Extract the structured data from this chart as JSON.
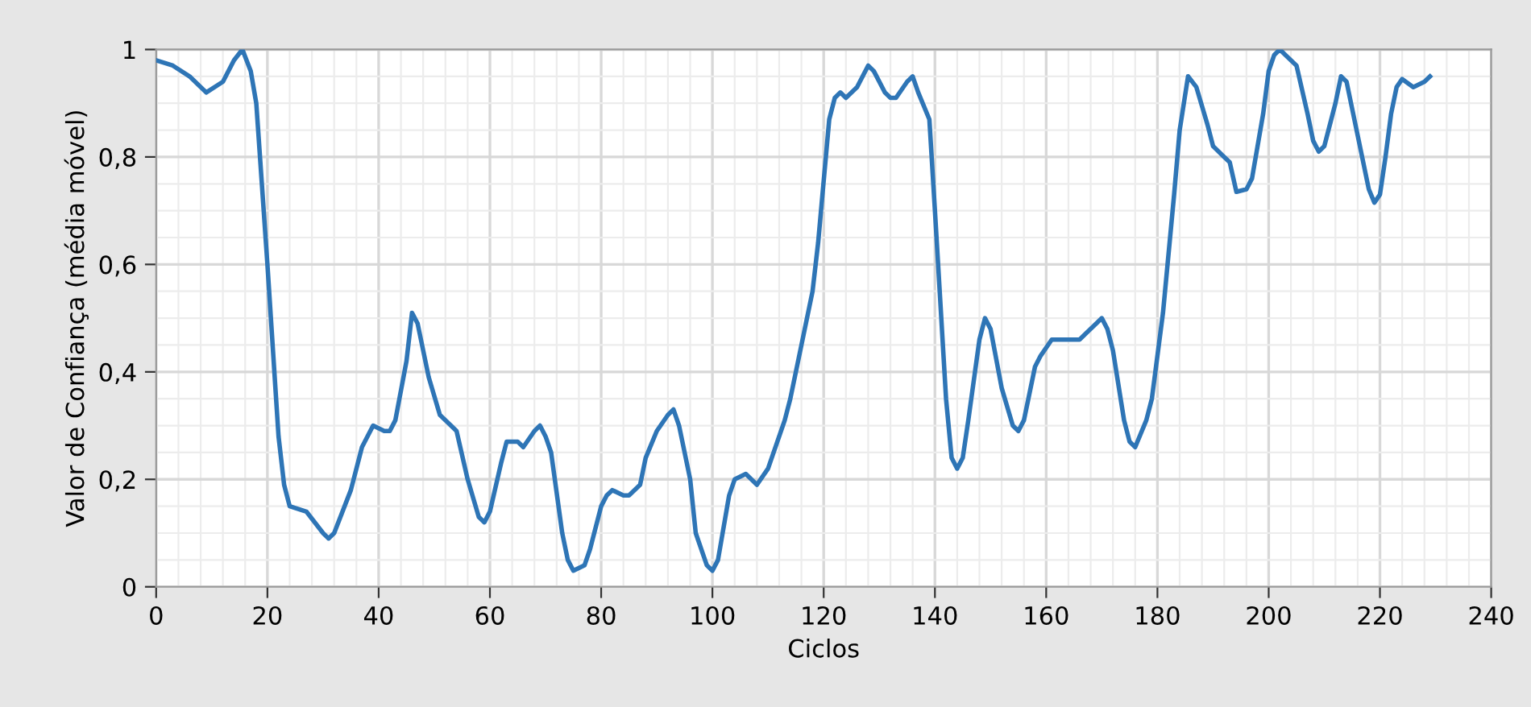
{
  "chart_data": {
    "type": "line",
    "xlabel": "Ciclos",
    "ylabel": "Valor de Confiança (média móvel)",
    "xlim": [
      0,
      240
    ],
    "xticks": [
      0,
      20,
      40,
      60,
      80,
      100,
      120,
      140,
      160,
      180,
      200,
      220,
      240
    ],
    "ylim": [
      0,
      1
    ],
    "yticks": [
      0,
      {
        "value": 0.2,
        "label": "0,2"
      },
      {
        "value": 0.4,
        "label": "0,4"
      },
      {
        "value": 0.6,
        "label": "0,6"
      },
      {
        "value": 0.8,
        "label": "0,8"
      },
      1
    ],
    "grid": true,
    "marker": "none",
    "line_style": "solid",
    "series": [
      {
        "color": "#2e75b6",
        "x": [
          0,
          3,
          6,
          9,
          12,
          14,
          15.5,
          17,
          18,
          20,
          22,
          23,
          24,
          27,
          30,
          31,
          32,
          35,
          37,
          39,
          41,
          42,
          43,
          45,
          46,
          47,
          49,
          51,
          53,
          54,
          56,
          58,
          59,
          60,
          62,
          63,
          65,
          66,
          68,
          69,
          70,
          71,
          73,
          74,
          75,
          77,
          78,
          80,
          81,
          82,
          84,
          85,
          87,
          88,
          90,
          92,
          93,
          94,
          96,
          97,
          99,
          100,
          101,
          103,
          104,
          106,
          107,
          108,
          110,
          113,
          114,
          118,
          119,
          121,
          122,
          123,
          124,
          126,
          128,
          129,
          131,
          132,
          133,
          135,
          136,
          137,
          139,
          140,
          142,
          143,
          144,
          145,
          146,
          148,
          149,
          150,
          152,
          154,
          155,
          156,
          158,
          159,
          161,
          164,
          166,
          167,
          169,
          170,
          171,
          172,
          174,
          175,
          176,
          178,
          179,
          181,
          183,
          184,
          185.5,
          187,
          189,
          190,
          192,
          193,
          194.2,
          196,
          197,
          199,
          200,
          201,
          202,
          203,
          205,
          207,
          208,
          209,
          210,
          212,
          213,
          214,
          216,
          218,
          219,
          220,
          221,
          222,
          223,
          224,
          226,
          228,
          229
        ],
        "values": [
          0.98,
          0.97,
          0.95,
          0.92,
          0.94,
          0.98,
          1.0,
          0.96,
          0.9,
          0.6,
          0.28,
          0.19,
          0.15,
          0.14,
          0.1,
          0.09,
          0.1,
          0.18,
          0.26,
          0.3,
          0.29,
          0.29,
          0.31,
          0.42,
          0.51,
          0.49,
          0.39,
          0.32,
          0.3,
          0.29,
          0.2,
          0.13,
          0.12,
          0.14,
          0.23,
          0.27,
          0.27,
          0.26,
          0.29,
          0.3,
          0.28,
          0.25,
          0.1,
          0.05,
          0.03,
          0.04,
          0.07,
          0.15,
          0.17,
          0.18,
          0.17,
          0.17,
          0.19,
          0.24,
          0.29,
          0.32,
          0.33,
          0.3,
          0.2,
          0.1,
          0.04,
          0.03,
          0.05,
          0.17,
          0.2,
          0.21,
          0.2,
          0.19,
          0.22,
          0.31,
          0.35,
          0.55,
          0.64,
          0.87,
          0.91,
          0.92,
          0.91,
          0.93,
          0.97,
          0.96,
          0.92,
          0.91,
          0.91,
          0.94,
          0.95,
          0.92,
          0.87,
          0.7,
          0.35,
          0.24,
          0.22,
          0.24,
          0.31,
          0.46,
          0.5,
          0.48,
          0.37,
          0.3,
          0.29,
          0.31,
          0.41,
          0.43,
          0.46,
          0.46,
          0.46,
          0.47,
          0.49,
          0.5,
          0.48,
          0.44,
          0.31,
          0.27,
          0.26,
          0.31,
          0.35,
          0.51,
          0.73,
          0.85,
          0.95,
          0.93,
          0.86,
          0.82,
          0.8,
          0.79,
          0.735,
          0.74,
          0.76,
          0.88,
          0.96,
          0.99,
          1.0,
          0.99,
          0.97,
          0.88,
          0.83,
          0.81,
          0.82,
          0.9,
          0.95,
          0.94,
          0.84,
          0.74,
          0.715,
          0.73,
          0.8,
          0.88,
          0.93,
          0.945,
          0.93,
          0.94,
          0.95
        ]
      }
    ]
  }
}
